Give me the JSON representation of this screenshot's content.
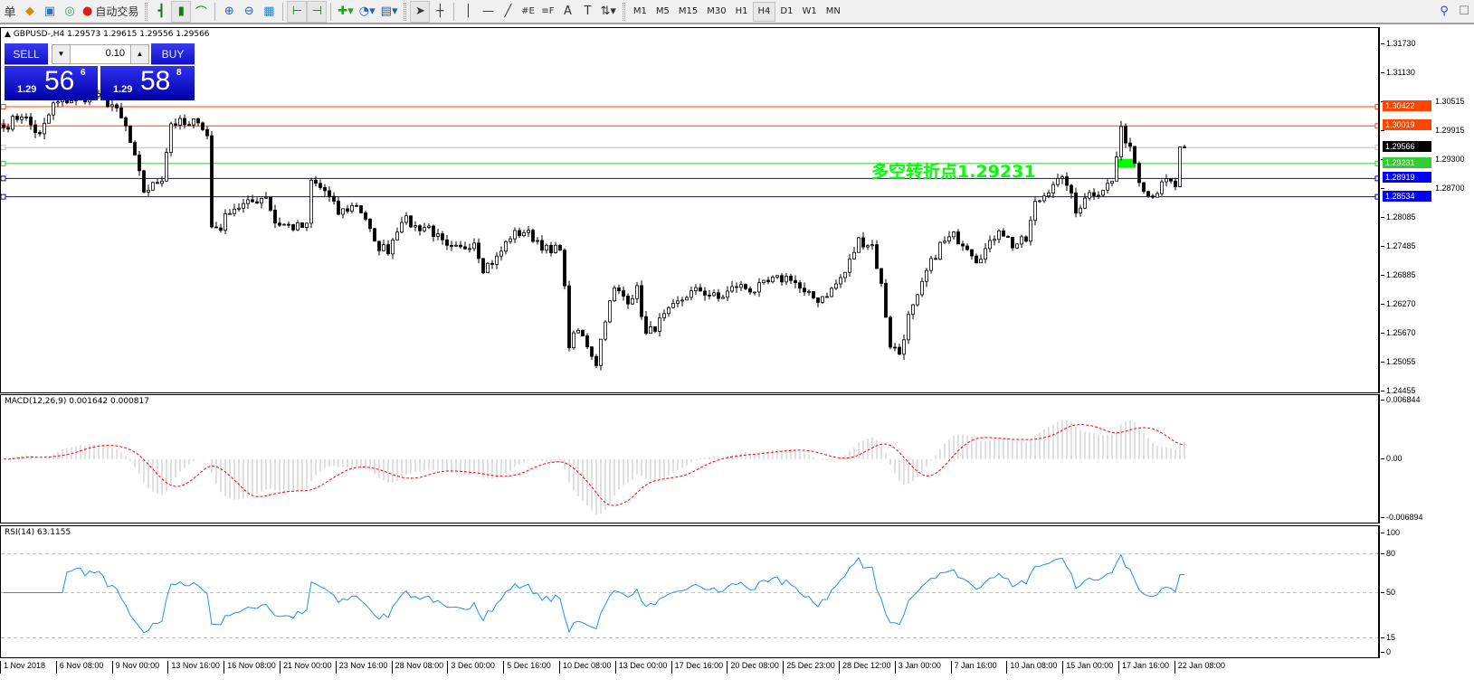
{
  "toolbar": {
    "left_text": "单",
    "auto_trade_label": "自动交易",
    "icons": [
      "market-watch-icon",
      "data-window-icon",
      "navigator-icon",
      "signal-icon",
      "auto-trading-icon",
      "bar-chart-icon",
      "candlestick-icon",
      "line-chart-icon",
      "zoom-in-icon",
      "zoom-out-icon",
      "tile-windows-icon",
      "chart-shift-icon",
      "auto-scroll-icon",
      "new-order-icon",
      "period-clock-icon",
      "templates-icon",
      "cursor-icon",
      "crosshair-icon",
      "vertical-line-icon",
      "horizontal-line-icon",
      "trendline-icon",
      "fibonacci-icon",
      "fibo-fan-icon",
      "text-icon",
      "text-label-icon",
      "arrows-icon",
      "search-icon",
      "chat-icon"
    ],
    "timeframes": [
      "M1",
      "M5",
      "M15",
      "M30",
      "H1",
      "H4",
      "D1",
      "W1",
      "MN"
    ],
    "active_timeframe": "H4"
  },
  "chart": {
    "title": "GBPUSD-,H4  1.29573 1.29615 1.29556 1.29566",
    "trade_panel": {
      "sell_label": "SELL",
      "buy_label": "BUY",
      "lots": "0.10",
      "sell_prefix": "1.29",
      "sell_big": "56",
      "sell_exp": "6",
      "buy_prefix": "1.29",
      "buy_big": "58",
      "buy_exp": "8"
    },
    "annotation": "多空转折点1.29231",
    "annotation_color": "#00ff00"
  },
  "chart_data": {
    "type": "candlestick",
    "symbol": "GBPUSD-",
    "timeframe": "H4",
    "ylim": [
      1.24455,
      1.3203
    ],
    "price_ticks": [
      "1.31730",
      "1.31130",
      "1.30515",
      "1.29915",
      "1.29300",
      "1.28700",
      "1.28085",
      "1.27485",
      "1.26885",
      "1.26270",
      "1.25670",
      "1.25055",
      "1.24455"
    ],
    "hlines": [
      {
        "price": 1.30422,
        "label": "1.30422",
        "color": "#ff4500"
      },
      {
        "price": 1.30019,
        "label": "1.30019",
        "color": "#ff4500"
      },
      {
        "price": 1.29566,
        "label": "1.29566",
        "color": "#000000",
        "line": "#c0c0c0"
      },
      {
        "price": 1.29231,
        "label": "1.29231",
        "color": "#32cd32"
      },
      {
        "price": 1.28919,
        "label": "1.28919",
        "color": "#0000ff"
      },
      {
        "price": 1.28534,
        "label": "1.28534",
        "color": "#0000ff"
      }
    ],
    "close_keypoints": [
      [
        0,
        1.2999
      ],
      [
        4,
        1.3027
      ],
      [
        8,
        1.298
      ],
      [
        11,
        1.3046
      ],
      [
        14,
        1.3056
      ],
      [
        20,
        1.3065
      ],
      [
        24,
        1.3046
      ],
      [
        27,
        1.2999
      ],
      [
        29,
        1.2932
      ],
      [
        31,
        1.2866
      ],
      [
        33,
        1.2876
      ],
      [
        35,
        1.2894
      ],
      [
        37,
        1.3008
      ],
      [
        39,
        1.3008
      ],
      [
        41,
        1.2999
      ],
      [
        43,
        1.3018
      ],
      [
        45,
        1.298
      ],
      [
        46,
        1.279
      ],
      [
        48,
        1.279
      ],
      [
        50,
        1.2828
      ],
      [
        54,
        1.2838
      ],
      [
        58,
        1.2857
      ],
      [
        60,
        1.28
      ],
      [
        64,
        1.279
      ],
      [
        67,
        1.279
      ],
      [
        68,
        1.2885
      ],
      [
        71,
        1.2866
      ],
      [
        74,
        1.2819
      ],
      [
        78,
        1.2838
      ],
      [
        80,
        1.2809
      ],
      [
        82,
        1.2752
      ],
      [
        85,
        1.2743
      ],
      [
        88,
        1.2809
      ],
      [
        91,
        1.279
      ],
      [
        94,
        1.279
      ],
      [
        98,
        1.2743
      ],
      [
        101,
        1.2743
      ],
      [
        104,
        1.2762
      ],
      [
        106,
        1.2705
      ],
      [
        109,
        1.2724
      ],
      [
        112,
        1.2771
      ],
      [
        115,
        1.2781
      ],
      [
        118,
        1.2762
      ],
      [
        121,
        1.2733
      ],
      [
        123,
        1.2752
      ],
      [
        124,
        1.2658
      ],
      [
        125,
        1.2544
      ],
      [
        127,
        1.2572
      ],
      [
        129,
        1.2544
      ],
      [
        131,
        1.2506
      ],
      [
        133,
        1.2601
      ],
      [
        135,
        1.2658
      ],
      [
        138,
        1.2639
      ],
      [
        140,
        1.2658
      ],
      [
        142,
        1.2563
      ],
      [
        145,
        1.2591
      ],
      [
        148,
        1.262
      ],
      [
        151,
        1.2648
      ],
      [
        154,
        1.2658
      ],
      [
        158,
        1.2639
      ],
      [
        162,
        1.2667
      ],
      [
        166,
        1.2658
      ],
      [
        170,
        1.2677
      ],
      [
        174,
        1.2686
      ],
      [
        177,
        1.2648
      ],
      [
        180,
        1.2639
      ],
      [
        183,
        1.2658
      ],
      [
        186,
        1.2695
      ],
      [
        189,
        1.2762
      ],
      [
        192,
        1.2752
      ],
      [
        194,
        1.2667
      ],
      [
        196,
        1.2544
      ],
      [
        198,
        1.2525
      ],
      [
        200,
        1.2601
      ],
      [
        202,
        1.2639
      ],
      [
        204,
        1.2695
      ],
      [
        207,
        1.2752
      ],
      [
        210,
        1.2771
      ],
      [
        213,
        1.2752
      ],
      [
        215,
        1.2724
      ],
      [
        218,
        1.2752
      ],
      [
        220,
        1.279
      ],
      [
        223,
        1.2752
      ],
      [
        226,
        1.2762
      ],
      [
        228,
        1.2838
      ],
      [
        230,
        1.2857
      ],
      [
        232,
        1.2885
      ],
      [
        235,
        1.2885
      ],
      [
        237,
        1.2819
      ],
      [
        239,
        1.2857
      ],
      [
        242,
        1.2866
      ],
      [
        245,
        1.2885
      ],
      [
        247,
        1.299
      ],
      [
        249,
        1.2961
      ],
      [
        251,
        1.2894
      ],
      [
        253,
        1.2857
      ],
      [
        255,
        1.2866
      ],
      [
        257,
        1.2885
      ],
      [
        259,
        1.2876
      ],
      [
        260,
        1.295
      ],
      [
        261,
        1.2957
      ]
    ],
    "x_ticks": [
      "1 Nov 2018",
      "6 Nov 08:00",
      "9 Nov 00:00",
      "13 Nov 16:00",
      "16 Nov 08:00",
      "21 Nov 00:00",
      "23 Nov 16:00",
      "28 Nov 08:00",
      "3 Dec 00:00",
      "5 Dec 16:00",
      "10 Dec 08:00",
      "13 Dec 00:00",
      "17 Dec 16:00",
      "20 Dec 08:00",
      "25 Dec 23:00",
      "28 Dec 12:00",
      "3 Jan 00:00",
      "7 Jan 16:00",
      "10 Jan 08:00",
      "15 Jan 00:00",
      "17 Jan 16:00",
      "22 Jan 08:00"
    ],
    "macd": {
      "label": "MACD(12,26,9) 0.001642 0.000817",
      "ylim": [
        -0.006894,
        0.006844
      ],
      "ticks": [
        "0.006844",
        "0.00",
        "-0.006894"
      ],
      "hist_color": "#c0c0c0",
      "signal_color": "#ff0000"
    },
    "rsi": {
      "label": "RSI(14) 63.1155",
      "ylim": [
        0,
        100
      ],
      "levels": [
        80,
        50,
        15
      ],
      "ticks": [
        "100",
        "80",
        "50",
        "15",
        "0"
      ],
      "color": "#1e90ff"
    }
  }
}
